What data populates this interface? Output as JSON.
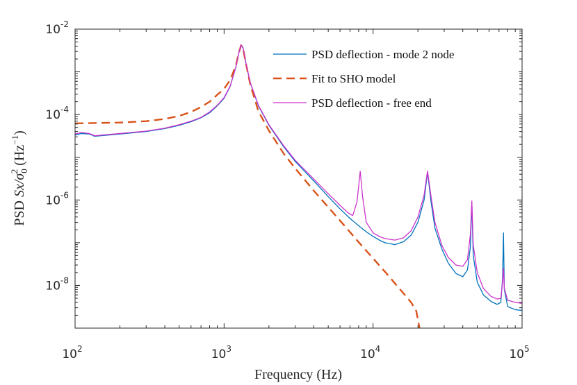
{
  "chart_data": {
    "type": "line",
    "xscale": "log",
    "yscale": "log",
    "xlim": [
      100,
      100000
    ],
    "ylim": [
      1e-09,
      0.01
    ],
    "xlabel": "Frequency (Hz)",
    "ylabel": {
      "prefix": "PSD ",
      "math": "Sx/σ",
      "sub": "0",
      "sup": "2",
      "unit_open": " (Hz",
      "unit_sup": "−1",
      "unit_close": ")"
    },
    "x_ticks": [
      {
        "value": 100,
        "base": "10",
        "exp": "2"
      },
      {
        "value": 1000,
        "base": "10",
        "exp": "3"
      },
      {
        "value": 10000,
        "base": "10",
        "exp": "4"
      },
      {
        "value": 100000,
        "base": "10",
        "exp": "5"
      }
    ],
    "y_ticks": [
      {
        "value": 1e-08,
        "base": "10",
        "exp": "-8"
      },
      {
        "value": 1e-06,
        "base": "10",
        "exp": "-6"
      },
      {
        "value": 0.0001,
        "base": "10",
        "exp": "-4"
      },
      {
        "value": 0.01,
        "base": "10",
        "exp": "-2"
      }
    ],
    "legend_position": "top-right",
    "series": [
      {
        "name": "PSD deflection - mode 2 node",
        "color": "#0072BD",
        "style": "solid",
        "points": [
          [
            100,
            3.3e-05
          ],
          [
            110,
            3.6e-05
          ],
          [
            125,
            3.5e-05
          ],
          [
            135,
            3.1e-05
          ],
          [
            150,
            3.2e-05
          ],
          [
            200,
            3.5e-05
          ],
          [
            300,
            4e-05
          ],
          [
            400,
            4.7e-05
          ],
          [
            500,
            5.6e-05
          ],
          [
            600,
            6.8e-05
          ],
          [
            700,
            8.4e-05
          ],
          [
            800,
            0.00011
          ],
          [
            900,
            0.00016
          ],
          [
            1000,
            0.00024
          ],
          [
            1100,
            0.00046
          ],
          [
            1200,
            0.0013
          ],
          [
            1250,
            0.0026
          ],
          [
            1300,
            0.0042
          ],
          [
            1340,
            0.0036
          ],
          [
            1400,
            0.0016
          ],
          [
            1500,
            0.00055
          ],
          [
            1700,
            0.00016
          ],
          [
            2000,
            5.6e-05
          ],
          [
            2500,
            1.8e-05
          ],
          [
            3000,
            8e-06
          ],
          [
            4000,
            2.8e-06
          ],
          [
            5000,
            1.2e-06
          ],
          [
            6000,
            6.2e-07
          ],
          [
            7000,
            3.7e-07
          ],
          [
            8000,
            2.5e-07
          ],
          [
            9000,
            1.8e-07
          ],
          [
            10000,
            1.4e-07
          ],
          [
            11000,
            1.15e-07
          ],
          [
            12000,
            1e-07
          ],
          [
            14000,
            9e-08
          ],
          [
            16000,
            1.05e-07
          ],
          [
            18000,
            1.5e-07
          ],
          [
            20000,
            3e-07
          ],
          [
            22000,
            1e-06
          ],
          [
            23200,
            4.5e-06
          ],
          [
            24500,
            9e-07
          ],
          [
            26000,
            2.2e-07
          ],
          [
            29000,
            7e-08
          ],
          [
            32000,
            3.3e-08
          ],
          [
            36000,
            1.9e-08
          ],
          [
            40000,
            1.6e-08
          ],
          [
            43000,
            2.3e-08
          ],
          [
            45000,
            8e-08
          ],
          [
            46000,
            9e-07
          ],
          [
            47000,
            5e-08
          ],
          [
            50000,
            1.2e-08
          ],
          [
            55000,
            6e-09
          ],
          [
            62000,
            4.2e-09
          ],
          [
            68000,
            3.6e-09
          ],
          [
            72000,
            4e-09
          ],
          [
            74000,
            1.5e-08
          ],
          [
            75000,
            1.7e-07
          ],
          [
            76000,
            8e-09
          ],
          [
            80000,
            3.2e-09
          ],
          [
            90000,
            2.7e-09
          ],
          [
            100000,
            2.6e-09
          ]
        ]
      },
      {
        "name": "Fit to SHO model",
        "color": "#D95319",
        "style": "dashed",
        "points": [
          [
            100,
            6.2e-05
          ],
          [
            200,
            6.5e-05
          ],
          [
            300,
            7e-05
          ],
          [
            400,
            7.9e-05
          ],
          [
            500,
            9.3e-05
          ],
          [
            600,
            0.000115
          ],
          [
            700,
            0.00015
          ],
          [
            800,
            0.0002
          ],
          [
            900,
            0.00029
          ],
          [
            1000,
            0.0004
          ],
          [
            1100,
            0.00065
          ],
          [
            1200,
            0.0014
          ],
          [
            1250,
            0.0026
          ],
          [
            1300,
            0.0042
          ],
          [
            1340,
            0.0036
          ],
          [
            1400,
            0.0016
          ],
          [
            1500,
            0.0005
          ],
          [
            1700,
            0.00012
          ],
          [
            2000,
            4.2e-05
          ],
          [
            2500,
            1.25e-05
          ],
          [
            3000,
            5.5e-06
          ],
          [
            4000,
            1.65e-06
          ],
          [
            5000,
            6.8e-07
          ],
          [
            6000,
            3.3e-07
          ],
          [
            8000,
            1.03e-07
          ],
          [
            10000,
            4.3e-08
          ],
          [
            12000,
            2.1e-08
          ],
          [
            15000,
            8.5e-09
          ],
          [
            18000,
            4e-09
          ],
          [
            19500,
            2.5e-09
          ],
          [
            20500,
            1e-09
          ]
        ]
      },
      {
        "name": "PSD deflection - free end",
        "color": "#CC33CC",
        "style": "solid",
        "points": [
          [
            100,
            3.5e-05
          ],
          [
            110,
            3.8e-05
          ],
          [
            125,
            3.6e-05
          ],
          [
            135,
            3.2e-05
          ],
          [
            150,
            3.3e-05
          ],
          [
            200,
            3.6e-05
          ],
          [
            300,
            4.1e-05
          ],
          [
            400,
            4.8e-05
          ],
          [
            500,
            5.8e-05
          ],
          [
            600,
            7e-05
          ],
          [
            700,
            8.6e-05
          ],
          [
            800,
            0.000115
          ],
          [
            900,
            0.000165
          ],
          [
            1000,
            0.00025
          ],
          [
            1100,
            0.00047
          ],
          [
            1200,
            0.0013
          ],
          [
            1250,
            0.0026
          ],
          [
            1300,
            0.0043
          ],
          [
            1340,
            0.0037
          ],
          [
            1400,
            0.00165
          ],
          [
            1500,
            0.00056
          ],
          [
            1700,
            0.000165
          ],
          [
            2000,
            5.8e-05
          ],
          [
            2500,
            1.9e-05
          ],
          [
            3000,
            8.5e-06
          ],
          [
            4000,
            3.1e-06
          ],
          [
            5000,
            1.4e-06
          ],
          [
            6000,
            7.5e-07
          ],
          [
            6800,
            5e-07
          ],
          [
            7300,
            4.3e-07
          ],
          [
            7800,
            9e-07
          ],
          [
            8200,
            4.7e-06
          ],
          [
            8500,
            1.2e-06
          ],
          [
            9000,
            3e-07
          ],
          [
            10000,
            1.7e-07
          ],
          [
            11000,
            1.4e-07
          ],
          [
            12000,
            1.25e-07
          ],
          [
            14000,
            1.15e-07
          ],
          [
            16000,
            1.3e-07
          ],
          [
            18000,
            1.9e-07
          ],
          [
            20000,
            4e-07
          ],
          [
            22000,
            1.3e-06
          ],
          [
            23200,
            4.8e-06
          ],
          [
            24500,
            1.2e-06
          ],
          [
            26000,
            3e-07
          ],
          [
            29000,
            8.5e-08
          ],
          [
            32000,
            4.5e-08
          ],
          [
            36000,
            3e-08
          ],
          [
            40000,
            2.8e-08
          ],
          [
            43000,
            4e-08
          ],
          [
            45000,
            1.6e-07
          ],
          [
            46000,
            9.5e-07
          ],
          [
            47000,
            9e-08
          ],
          [
            50000,
            2e-08
          ],
          [
            55000,
            8.5e-09
          ],
          [
            62000,
            5.5e-09
          ],
          [
            68000,
            4.8e-09
          ],
          [
            72000,
            5e-09
          ],
          [
            74000,
            1.2e-08
          ],
          [
            75000,
            2.5e-08
          ],
          [
            76000,
            8.5e-09
          ],
          [
            80000,
            4.5e-09
          ],
          [
            90000,
            4e-09
          ],
          [
            100000,
            3.8e-09
          ]
        ]
      }
    ]
  }
}
